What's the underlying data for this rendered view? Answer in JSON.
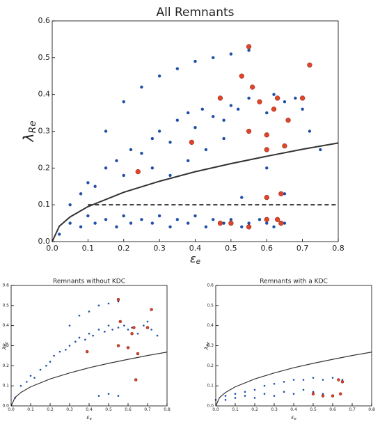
{
  "chart_data": [
    {
      "type": "scatter",
      "title": "All Remnants",
      "xlabel": "ε",
      "xlabel_sub": "e",
      "ylabel": "λ",
      "ylabel_sub": "Re",
      "xlim": [
        0,
        0.8
      ],
      "ylim": [
        0,
        0.6
      ],
      "xticks": [
        {
          "value": 0,
          "label": "0.0"
        },
        {
          "value": 0.1,
          "label": "0.1"
        },
        {
          "value": 0.2,
          "label": "0.2"
        },
        {
          "value": 0.3,
          "label": "0.3"
        },
        {
          "value": 0.4,
          "label": "0.4"
        },
        {
          "value": 0.5,
          "label": "0.5"
        },
        {
          "value": 0.6,
          "label": "0.6"
        },
        {
          "value": 0.7,
          "label": "0.7"
        },
        {
          "value": 0.8,
          "label": "0.8"
        }
      ],
      "yticks": [
        {
          "value": 0,
          "label": "0.0"
        },
        {
          "value": 0.1,
          "label": "0.1"
        },
        {
          "value": 0.2,
          "label": "0.2"
        },
        {
          "value": 0.3,
          "label": "0.3"
        },
        {
          "value": 0.4,
          "label": "0.4"
        },
        {
          "value": 0.5,
          "label": "0.5"
        },
        {
          "value": 0.6,
          "label": "0.6"
        }
      ],
      "series": [
        {
          "color": "#1f4fa8",
          "x": [
            0.02,
            0.05,
            0.08,
            0.1,
            0.12,
            0.15,
            0.18,
            0.2,
            0.22,
            0.25,
            0.28,
            0.3,
            0.33,
            0.35,
            0.38,
            0.4,
            0.43,
            0.45,
            0.48,
            0.5,
            0.53,
            0.55,
            0.58,
            0.6,
            0.62,
            0.65,
            0.05,
            0.08,
            0.1,
            0.12,
            0.15,
            0.18,
            0.2,
            0.22,
            0.25,
            0.28,
            0.3,
            0.33,
            0.35,
            0.38,
            0.4,
            0.42,
            0.45,
            0.48,
            0.5,
            0.52,
            0.55,
            0.58,
            0.6,
            0.62,
            0.65,
            0.68,
            0.7,
            0.72,
            0.75,
            0.15,
            0.2,
            0.25,
            0.3,
            0.35,
            0.4,
            0.45,
            0.5,
            0.55,
            0.28,
            0.33,
            0.38,
            0.43,
            0.48,
            0.53,
            0.6,
            0.65
          ],
          "y": [
            0.02,
            0.05,
            0.04,
            0.07,
            0.05,
            0.06,
            0.04,
            0.07,
            0.05,
            0.06,
            0.05,
            0.07,
            0.04,
            0.06,
            0.05,
            0.07,
            0.04,
            0.06,
            0.05,
            0.06,
            0.04,
            0.05,
            0.06,
            0.05,
            0.04,
            0.05,
            0.1,
            0.13,
            0.16,
            0.15,
            0.2,
            0.22,
            0.18,
            0.25,
            0.24,
            0.28,
            0.3,
            0.27,
            0.33,
            0.35,
            0.31,
            0.36,
            0.34,
            0.33,
            0.37,
            0.36,
            0.39,
            0.38,
            0.35,
            0.4,
            0.38,
            0.39,
            0.36,
            0.3,
            0.25,
            0.3,
            0.38,
            0.42,
            0.45,
            0.47,
            0.49,
            0.5,
            0.51,
            0.52,
            0.2,
            0.18,
            0.22,
            0.25,
            0.28,
            0.12,
            0.2,
            0.13
          ]
        },
        {
          "color": "#e0452b",
          "x": [
            0.55,
            0.72,
            0.53,
            0.56,
            0.47,
            0.63,
            0.7,
            0.58,
            0.62,
            0.66,
            0.55,
            0.6,
            0.39,
            0.6,
            0.65,
            0.24,
            0.64,
            0.6,
            0.63,
            0.5,
            0.55,
            0.47,
            0.64,
            0.6
          ],
          "y": [
            0.53,
            0.48,
            0.45,
            0.42,
            0.39,
            0.39,
            0.39,
            0.38,
            0.36,
            0.33,
            0.3,
            0.29,
            0.27,
            0.25,
            0.26,
            0.19,
            0.13,
            0.12,
            0.06,
            0.05,
            0.04,
            0.05,
            0.05,
            0.06
          ]
        }
      ],
      "lines": [
        {
          "color": "#333333",
          "dashed": false,
          "x": [
            0,
            0.02,
            0.05,
            0.1,
            0.2,
            0.3,
            0.4,
            0.5,
            0.6,
            0.7,
            0.8
          ],
          "y": [
            0,
            0.042,
            0.067,
            0.095,
            0.134,
            0.164,
            0.19,
            0.212,
            0.232,
            0.251,
            0.268
          ]
        },
        {
          "color": "#333333",
          "dashed": true,
          "x": [
            0.1,
            0.8
          ],
          "y": [
            0.1,
            0.1
          ]
        }
      ]
    },
    {
      "type": "scatter",
      "title": "Remnants without KDC",
      "xlabel": "ε",
      "xlabel_sub": "e",
      "ylabel": "λ",
      "ylabel_sub": "Re",
      "xlim": [
        0,
        0.8
      ],
      "ylim": [
        0,
        0.6
      ],
      "xticks": [
        {
          "value": 0,
          "label": "0.0"
        },
        {
          "value": 0.1,
          "label": "0.1"
        },
        {
          "value": 0.2,
          "label": "0.2"
        },
        {
          "value": 0.3,
          "label": "0.3"
        },
        {
          "value": 0.4,
          "label": "0.4"
        },
        {
          "value": 0.5,
          "label": "0.5"
        },
        {
          "value": 0.6,
          "label": "0.6"
        },
        {
          "value": 0.7,
          "label": "0.7"
        },
        {
          "value": 0.8,
          "label": "0.8"
        }
      ],
      "yticks": [
        {
          "value": 0,
          "label": "0.0"
        },
        {
          "value": 0.1,
          "label": "0.1"
        },
        {
          "value": 0.2,
          "label": "0.2"
        },
        {
          "value": 0.3,
          "label": "0.3"
        },
        {
          "value": 0.4,
          "label": "0.4"
        },
        {
          "value": 0.5,
          "label": "0.5"
        },
        {
          "value": 0.6,
          "label": "0.6"
        }
      ],
      "series": [
        {
          "color": "#1f4fa8",
          "x": [
            0.02,
            0.05,
            0.08,
            0.1,
            0.12,
            0.15,
            0.18,
            0.2,
            0.22,
            0.25,
            0.28,
            0.3,
            0.33,
            0.35,
            0.38,
            0.4,
            0.42,
            0.45,
            0.48,
            0.5,
            0.52,
            0.55,
            0.58,
            0.6,
            0.62,
            0.65,
            0.68,
            0.7,
            0.72,
            0.75,
            0.3,
            0.35,
            0.4,
            0.45,
            0.5,
            0.55,
            0.45,
            0.5,
            0.55
          ],
          "y": [
            0.04,
            0.1,
            0.12,
            0.15,
            0.14,
            0.18,
            0.2,
            0.22,
            0.25,
            0.27,
            0.28,
            0.3,
            0.32,
            0.34,
            0.33,
            0.36,
            0.35,
            0.38,
            0.37,
            0.4,
            0.38,
            0.39,
            0.4,
            0.38,
            0.39,
            0.36,
            0.4,
            0.42,
            0.38,
            0.35,
            0.4,
            0.45,
            0.47,
            0.5,
            0.51,
            0.52,
            0.05,
            0.06,
            0.05
          ]
        },
        {
          "color": "#e0452b",
          "x": [
            0.55,
            0.72,
            0.56,
            0.63,
            0.7,
            0.62,
            0.55,
            0.6,
            0.65,
            0.39,
            0.64
          ],
          "y": [
            0.53,
            0.48,
            0.42,
            0.39,
            0.39,
            0.36,
            0.3,
            0.29,
            0.26,
            0.27,
            0.13
          ]
        }
      ],
      "lines": [
        {
          "color": "#333333",
          "dashed": false,
          "x": [
            0,
            0.02,
            0.05,
            0.1,
            0.2,
            0.3,
            0.4,
            0.5,
            0.6,
            0.7,
            0.8
          ],
          "y": [
            0,
            0.042,
            0.067,
            0.095,
            0.134,
            0.164,
            0.19,
            0.212,
            0.232,
            0.251,
            0.268
          ]
        }
      ]
    },
    {
      "type": "scatter",
      "title": "Remnants with a KDC",
      "xlabel": "ε",
      "xlabel_sub": "e",
      "ylabel": "λ",
      "ylabel_sub": "Re",
      "xlim": [
        0,
        0.8
      ],
      "ylim": [
        0,
        0.6
      ],
      "xticks": [
        {
          "value": 0,
          "label": "0.0"
        },
        {
          "value": 0.1,
          "label": "0.1"
        },
        {
          "value": 0.2,
          "label": "0.2"
        },
        {
          "value": 0.3,
          "label": "0.3"
        },
        {
          "value": 0.4,
          "label": "0.4"
        },
        {
          "value": 0.5,
          "label": "0.5"
        },
        {
          "value": 0.6,
          "label": "0.6"
        },
        {
          "value": 0.7,
          "label": "0.7"
        },
        {
          "value": 0.8,
          "label": "0.8"
        }
      ],
      "yticks": [
        {
          "value": 0,
          "label": "0.0"
        },
        {
          "value": 0.1,
          "label": "0.1"
        },
        {
          "value": 0.2,
          "label": "0.2"
        },
        {
          "value": 0.3,
          "label": "0.3"
        },
        {
          "value": 0.4,
          "label": "0.4"
        },
        {
          "value": 0.5,
          "label": "0.5"
        },
        {
          "value": 0.6,
          "label": "0.6"
        }
      ],
      "series": [
        {
          "color": "#1f4fa8",
          "x": [
            0.0,
            0.05,
            0.1,
            0.15,
            0.2,
            0.25,
            0.3,
            0.35,
            0.4,
            0.45,
            0.5,
            0.55,
            0.6,
            0.65,
            0.05,
            0.1,
            0.15,
            0.2,
            0.25,
            0.3,
            0.35,
            0.4,
            0.45,
            0.5,
            0.55,
            0.6
          ],
          "y": [
            0.03,
            0.05,
            0.06,
            0.07,
            0.08,
            0.1,
            0.11,
            0.12,
            0.13,
            0.13,
            0.14,
            0.13,
            0.14,
            0.13,
            0.03,
            0.04,
            0.05,
            0.04,
            0.06,
            0.05,
            0.07,
            0.06,
            0.08,
            0.07,
            0.06,
            0.05
          ]
        },
        {
          "color": "#e0452b",
          "x": [
            0.63,
            0.65,
            0.5,
            0.55,
            0.6,
            0.64
          ],
          "y": [
            0.13,
            0.12,
            0.06,
            0.05,
            0.05,
            0.06
          ]
        }
      ],
      "lines": [
        {
          "color": "#333333",
          "dashed": false,
          "x": [
            0,
            0.02,
            0.05,
            0.1,
            0.2,
            0.3,
            0.4,
            0.5,
            0.6,
            0.7,
            0.8
          ],
          "y": [
            0,
            0.042,
            0.067,
            0.095,
            0.134,
            0.164,
            0.19,
            0.212,
            0.232,
            0.251,
            0.268
          ]
        }
      ]
    }
  ]
}
